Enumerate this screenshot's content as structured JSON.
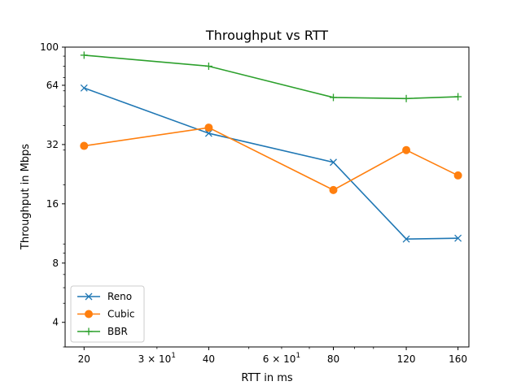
{
  "chart_data": {
    "type": "line",
    "title": "Throughput vs RTT",
    "xlabel": "RTT in ms",
    "ylabel": "Throughput in Mbps",
    "xscale": "log",
    "yscale": "log",
    "xlim": [
      18,
      170
    ],
    "ylim": [
      3,
      100
    ],
    "x": [
      20,
      40,
      80,
      120,
      160
    ],
    "xticks": [
      {
        "value": 20,
        "label": "20"
      },
      {
        "value": 40,
        "label": "40"
      },
      {
        "value": 80,
        "label": "80"
      },
      {
        "value": 120,
        "label": "120"
      },
      {
        "value": 160,
        "label": "160"
      }
    ],
    "xticks_extra": [
      {
        "value": 30,
        "base": "3 × 10",
        "exp": "1"
      },
      {
        "value": 60,
        "base": "6 × 10",
        "exp": "1"
      }
    ],
    "yticks": [
      {
        "value": 4,
        "label": "4"
      },
      {
        "value": 8,
        "label": "8"
      },
      {
        "value": 16,
        "label": "16"
      },
      {
        "value": 32,
        "label": "32"
      },
      {
        "value": 64,
        "label": "64"
      },
      {
        "value": 100,
        "label": "100"
      }
    ],
    "grid": false,
    "legend_position": "lower-left",
    "series": [
      {
        "name": "Reno",
        "color": "#1f77b4",
        "marker": "x",
        "values": [
          62,
          36.5,
          26,
          10.6,
          10.7
        ]
      },
      {
        "name": "Cubic",
        "color": "#ff7f0e",
        "marker": "o",
        "values": [
          31.5,
          39,
          18.8,
          30,
          22.3
        ]
      },
      {
        "name": "BBR",
        "color": "#2ca02c",
        "marker": "+",
        "values": [
          91,
          80,
          55.5,
          54.8,
          56
        ]
      }
    ]
  }
}
